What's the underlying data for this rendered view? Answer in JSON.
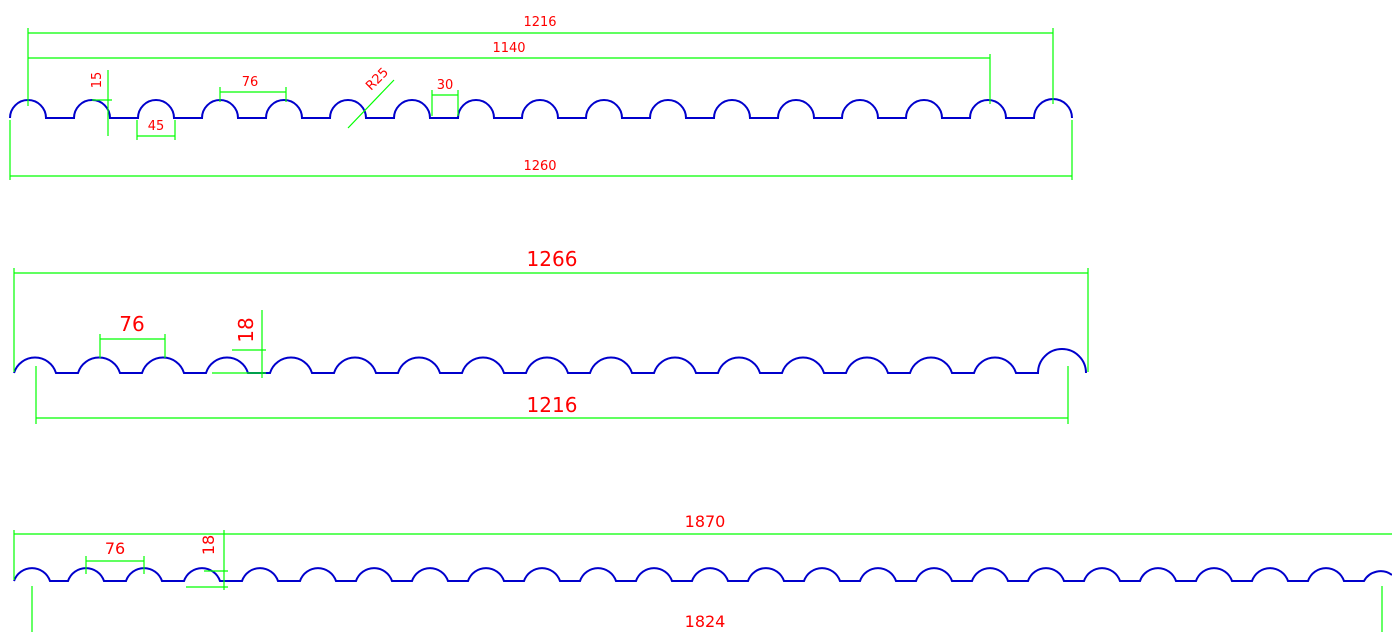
{
  "colors": {
    "profile": "#0000cc",
    "dimension": "#00ff00",
    "text": "#ff0000"
  },
  "profiles": [
    {
      "id": "profile-1",
      "dimensions": {
        "overall_top": "1216",
        "second_top": "1140",
        "wave_height": "15",
        "pitch": "76",
        "radius": "R25",
        "flat": "30",
        "arc_width": "45",
        "total_width": "1260"
      }
    },
    {
      "id": "profile-2",
      "dimensions": {
        "total_width": "1266",
        "pitch": "76",
        "wave_height": "18",
        "cover_width": "1216"
      }
    },
    {
      "id": "profile-3",
      "dimensions": {
        "total_width": "1870",
        "pitch": "76",
        "wave_height": "18",
        "cover_width": "1824"
      }
    }
  ]
}
